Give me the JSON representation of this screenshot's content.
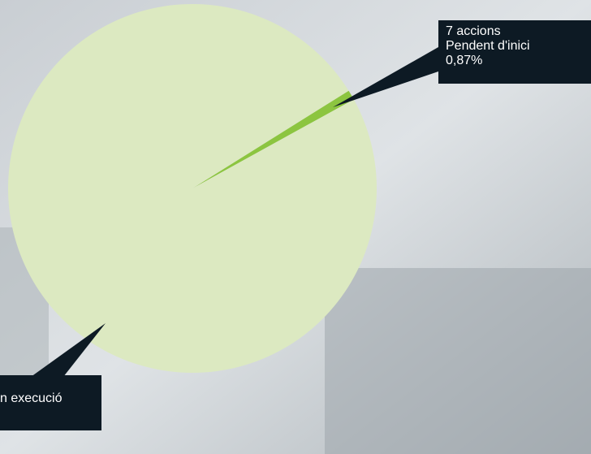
{
  "chart_data": {
    "type": "pie",
    "categories": [
      "Pendent d'inici",
      "n execució"
    ],
    "counts": [
      "7 accions",
      null
    ],
    "values": [
      0.87,
      99.13
    ],
    "value_labels": [
      "0,87%",
      null
    ],
    "colors": [
      "#8cc540",
      "#dce9c1"
    ]
  }
}
